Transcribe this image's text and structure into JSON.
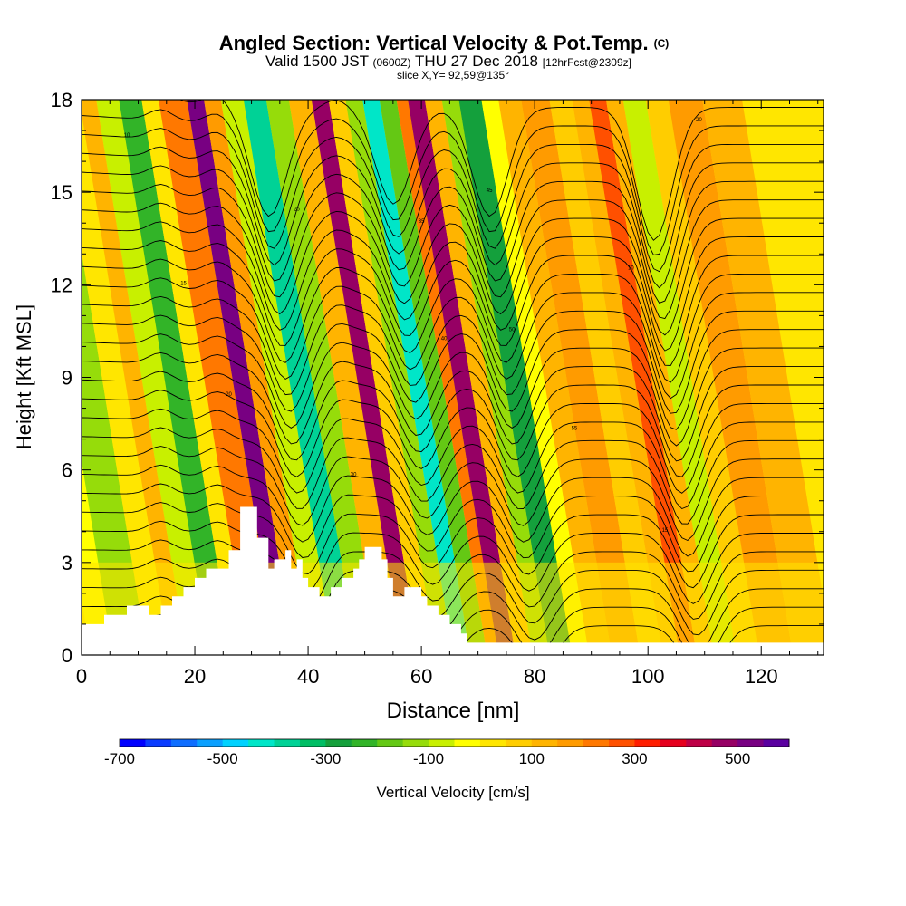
{
  "header": {
    "title": "Angled Section: Vertical Velocity & Pot.Temp.",
    "title_tag": "(C)",
    "valid_prefix": "Valid 1500 JST",
    "valid_utc": "(0600Z)",
    "valid_date": "THU 27 Dec 2018",
    "forecast_tag": "[12hrFcst@2309z]",
    "slice": "slice X,Y= 92,59@135°"
  },
  "chart_data": {
    "type": "heatmap",
    "xlabel": "Distance [nm]",
    "ylabel": "Height [Kft MSL]",
    "xlim": [
      0,
      131
    ],
    "ylim": [
      0,
      18
    ],
    "x_ticks": [
      0,
      20,
      40,
      60,
      80,
      100,
      120
    ],
    "y_ticks": [
      0,
      3,
      6,
      9,
      12,
      15,
      18
    ],
    "colorbar": {
      "label": "Vertical Velocity [cm/s]",
      "tick_labels": [
        "-700",
        "-500",
        "-300",
        "-100",
        "100",
        "300",
        "500"
      ],
      "tick_values": [
        -700,
        -500,
        -300,
        -100,
        100,
        300,
        500
      ],
      "range": [
        -700,
        600
      ],
      "colors": [
        "#0000ff",
        "#0a3cff",
        "#0f6eff",
        "#0aa0ff",
        "#00d2ff",
        "#00e6c8",
        "#00d296",
        "#00be64",
        "#14a03c",
        "#32b428",
        "#64c814",
        "#96dc0a",
        "#c8f000",
        "#ffff00",
        "#ffe600",
        "#ffcd00",
        "#ffb400",
        "#ff9b00",
        "#ff7800",
        "#ff5000",
        "#ff1e00",
        "#e6001e",
        "#be0046",
        "#960064",
        "#780082",
        "#5a00a0"
      ]
    },
    "velocity_bands": [
      {
        "x": 0,
        "value": -50
      },
      {
        "x": 4,
        "value": -150
      },
      {
        "x": 10,
        "value": 50
      },
      {
        "x": 14,
        "value": 130
      },
      {
        "x": 17,
        "value": -60
      },
      {
        "x": 21,
        "value": -230
      },
      {
        "x": 25,
        "value": 20
      },
      {
        "x": 28,
        "value": 200
      },
      {
        "x": 33,
        "value": 520
      },
      {
        "x": 36,
        "value": 160
      },
      {
        "x": 39,
        "value": -100
      },
      {
        "x": 43,
        "value": -380
      },
      {
        "x": 47,
        "value": -130
      },
      {
        "x": 51,
        "value": 140
      },
      {
        "x": 55,
        "value": 460
      },
      {
        "x": 58,
        "value": 90
      },
      {
        "x": 61,
        "value": -120
      },
      {
        "x": 64,
        "value": -420
      },
      {
        "x": 67,
        "value": -180
      },
      {
        "x": 70,
        "value": 200
      },
      {
        "x": 72,
        "value": 460
      },
      {
        "x": 75,
        "value": 140
      },
      {
        "x": 78,
        "value": -120
      },
      {
        "x": 81,
        "value": -260
      },
      {
        "x": 85,
        "value": -20
      },
      {
        "x": 88,
        "value": 110
      },
      {
        "x": 92,
        "value": 150
      },
      {
        "x": 97,
        "value": 60
      },
      {
        "x": 101,
        "value": 130
      },
      {
        "x": 104,
        "value": 280
      },
      {
        "x": 107,
        "value": 100
      },
      {
        "x": 110,
        "value": -90
      },
      {
        "x": 114,
        "value": 80
      },
      {
        "x": 118,
        "value": 160
      },
      {
        "x": 124,
        "value": 100
      },
      {
        "x": 131,
        "value": 60
      }
    ],
    "terrain": [
      [
        0,
        1.0
      ],
      [
        4,
        1.0
      ],
      [
        4,
        1.3
      ],
      [
        8,
        1.3
      ],
      [
        8,
        1.6
      ],
      [
        12,
        1.6
      ],
      [
        12,
        1.3
      ],
      [
        14,
        1.3
      ],
      [
        14,
        1.6
      ],
      [
        16,
        1.6
      ],
      [
        16,
        1.9
      ],
      [
        18,
        1.9
      ],
      [
        18,
        2.2
      ],
      [
        20,
        2.2
      ],
      [
        20,
        2.5
      ],
      [
        22,
        2.5
      ],
      [
        22,
        2.8
      ],
      [
        26,
        2.8
      ],
      [
        26,
        3.4
      ],
      [
        28,
        3.4
      ],
      [
        28,
        4.8
      ],
      [
        31,
        4.8
      ],
      [
        31,
        3.8
      ],
      [
        33,
        3.8
      ],
      [
        33,
        2.8
      ],
      [
        34,
        2.8
      ],
      [
        34,
        3.1
      ],
      [
        36,
        3.1
      ],
      [
        36,
        3.4
      ],
      [
        37,
        3.4
      ],
      [
        37,
        2.8
      ],
      [
        38,
        2.8
      ],
      [
        38,
        3.1
      ],
      [
        39,
        3.1
      ],
      [
        39,
        2.5
      ],
      [
        40,
        2.5
      ],
      [
        40,
        2.2
      ],
      [
        42,
        2.2
      ],
      [
        42,
        1.9
      ],
      [
        44,
        1.9
      ],
      [
        44,
        2.2
      ],
      [
        46,
        2.2
      ],
      [
        46,
        2.5
      ],
      [
        48,
        2.5
      ],
      [
        48,
        2.8
      ],
      [
        49,
        2.8
      ],
      [
        49,
        3.1
      ],
      [
        50,
        3.1
      ],
      [
        50,
        3.5
      ],
      [
        53,
        3.5
      ],
      [
        53,
        3.1
      ],
      [
        54,
        3.1
      ],
      [
        54,
        2.5
      ],
      [
        55,
        2.5
      ],
      [
        55,
        1.9
      ],
      [
        57,
        1.9
      ],
      [
        57,
        2.2
      ],
      [
        60,
        2.2
      ],
      [
        60,
        1.9
      ],
      [
        61,
        1.9
      ],
      [
        61,
        1.6
      ],
      [
        63,
        1.6
      ],
      [
        63,
        1.3
      ],
      [
        65,
        1.3
      ],
      [
        65,
        1.0
      ],
      [
        67,
        1.0
      ],
      [
        67,
        0.7
      ],
      [
        68,
        0.7
      ],
      [
        68,
        0.4
      ],
      [
        131,
        0.4
      ]
    ],
    "contour_labels": [
      "10",
      "15",
      "20",
      "25",
      "30",
      "35",
      "40",
      "45",
      "50",
      "55"
    ]
  }
}
